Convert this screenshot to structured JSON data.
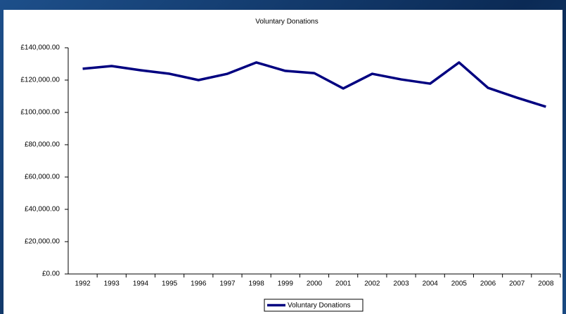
{
  "chart_data": {
    "type": "line",
    "title": "Voluntary Donations",
    "categories": [
      "1992",
      "1993",
      "1994",
      "1995",
      "1996",
      "1997",
      "1998",
      "1999",
      "2000",
      "2001",
      "2002",
      "2003",
      "2004",
      "2005",
      "2006",
      "2007",
      "2008"
    ],
    "series": [
      {
        "name": "Voluntary Donations",
        "color": "#000080",
        "values": [
          127000,
          128700,
          126100,
          123900,
          120000,
          123900,
          130900,
          125700,
          124300,
          114800,
          123900,
          120400,
          117800,
          130900,
          115200,
          109100,
          103500
        ]
      }
    ],
    "ylim": [
      0,
      140000
    ],
    "yticks": [
      {
        "value": 0,
        "label": "£0.00"
      },
      {
        "value": 20000,
        "label": "£20,000.00"
      },
      {
        "value": 40000,
        "label": "£40,000.00"
      },
      {
        "value": 60000,
        "label": "£60,000.00"
      },
      {
        "value": 80000,
        "label": "£80,000.00"
      },
      {
        "value": 100000,
        "label": "£100,000.00"
      },
      {
        "value": 120000,
        "label": "£120,000.00"
      },
      {
        "value": 140000,
        "label": "£140,000.00"
      }
    ],
    "legend": "bottom"
  }
}
